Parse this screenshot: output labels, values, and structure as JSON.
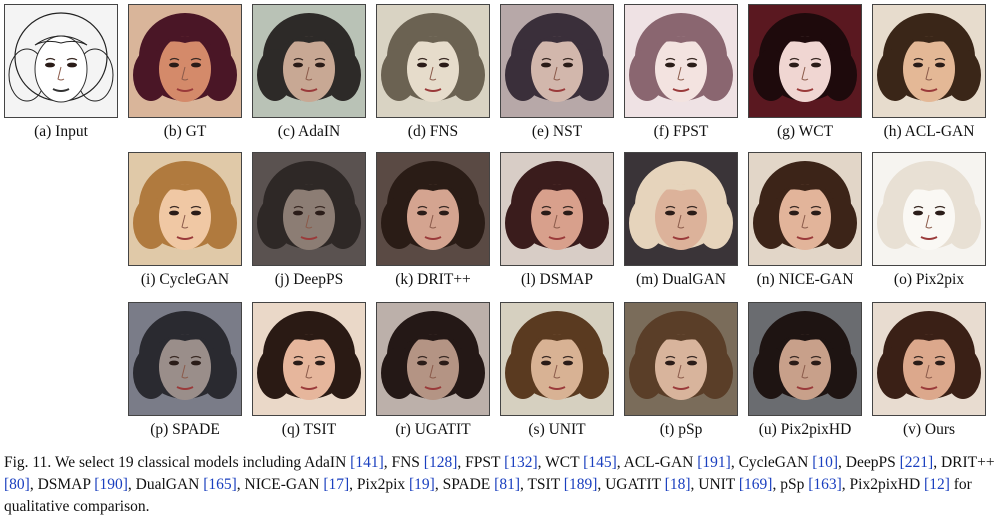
{
  "figure": {
    "cells": [
      {
        "label": "(a) Input",
        "bg": "#f4f4f4",
        "hair": "#2a2a2a",
        "skin": "#ffffff",
        "sketch": true
      },
      {
        "label": "(b) GT",
        "bg": "#d9b59a",
        "hair": "#4a1626",
        "skin": "#d48a6a"
      },
      {
        "label": "(c) AdaIN",
        "bg": "#b9c2b6",
        "hair": "#2d2a28",
        "skin": "#c8a894"
      },
      {
        "label": "(d) FNS",
        "bg": "#d9d3c3",
        "hair": "#6b6252",
        "skin": "#e6dccb"
      },
      {
        "label": "(e) NST",
        "bg": "#b7a8a8",
        "hair": "#3a2f3a",
        "skin": "#d2b7ac"
      },
      {
        "label": "(f) FPST",
        "bg": "#efe2e4",
        "hair": "#8a6670",
        "skin": "#f3e3e0"
      },
      {
        "label": "(g) WCT",
        "bg": "#5a1820",
        "hair": "#1e0a0c",
        "skin": "#f0d6d2"
      },
      {
        "label": "(h) ACL-GAN",
        "bg": "#e7dccd",
        "hair": "#3a2618",
        "skin": "#e4b896"
      },
      {
        "label": "(i) CycleGAN",
        "bg": "#e0c9a8",
        "hair": "#b07a3e",
        "skin": "#f0c8a4"
      },
      {
        "label": "(j) DeepPS",
        "bg": "#5a5250",
        "hair": "#2e2826",
        "skin": "#8c7d74"
      },
      {
        "label": "(k) DRIT++",
        "bg": "#5a4a44",
        "hair": "#2a1c16",
        "skin": "#d4a490"
      },
      {
        "label": "(l) DSMAP",
        "bg": "#d8cdc6",
        "hair": "#3a1c1c",
        "skin": "#d8a08c"
      },
      {
        "label": "(m) DualGAN",
        "bg": "#3a3438",
        "hair": "#e6d4bc",
        "skin": "#dcb29a"
      },
      {
        "label": "(n) NICE-GAN",
        "bg": "#e2d6c8",
        "hair": "#3c2418",
        "skin": "#e2b49a"
      },
      {
        "label": "(o) Pix2pix",
        "bg": "#f6f4f0",
        "hair": "#e8e0d4",
        "skin": "#faf8f4"
      },
      {
        "label": "(p) SPADE",
        "bg": "#7a7c88",
        "hair": "#2a2a30",
        "skin": "#9a8e8a"
      },
      {
        "label": "(q) TSIT",
        "bg": "#ead8c8",
        "hair": "#2a1a14",
        "skin": "#e6b69c"
      },
      {
        "label": "(r) UGATIT",
        "bg": "#bcb0aa",
        "hair": "#241816",
        "skin": "#b49484"
      },
      {
        "label": "(s) UNIT",
        "bg": "#d6d0c0",
        "hair": "#5a3a20",
        "skin": "#d8b294"
      },
      {
        "label": "(t) pSp",
        "bg": "#7a6c5a",
        "hair": "#5a3e28",
        "skin": "#d8b49c"
      },
      {
        "label": "(u) Pix2pixHD",
        "bg": "#6a6c70",
        "hair": "#1e1412",
        "skin": "#c8a08a"
      },
      {
        "label": "(v) Ours",
        "bg": "#e8dcd0",
        "hair": "#3a2016",
        "skin": "#dca88c"
      }
    ]
  },
  "caption": {
    "lead": "Fig. 11. We select 19 classical models including AdaIN ",
    "parts": [
      {
        "ref": "[141]",
        "text": ", FNS "
      },
      {
        "ref": "[128]",
        "text": ", FPST "
      },
      {
        "ref": "[132]",
        "text": ", WCT "
      },
      {
        "ref": "[145]",
        "text": ", ACL-GAN "
      },
      {
        "ref": "[191]",
        "text": ", CycleGAN "
      },
      {
        "ref": "[10]",
        "text": ", DeepPS "
      },
      {
        "ref": "[221]",
        "text": ", DRIT++ "
      },
      {
        "ref": "[80]",
        "text": ", DSMAP "
      },
      {
        "ref": "[190]",
        "text": ", DualGAN "
      },
      {
        "ref": "[165]",
        "text": ", NICE-GAN "
      },
      {
        "ref": "[17]",
        "text": ", Pix2pix "
      },
      {
        "ref": "[19]",
        "text": ", SPADE "
      },
      {
        "ref": "[81]",
        "text": ", TSIT "
      },
      {
        "ref": "[189]",
        "text": ", UGATIT "
      },
      {
        "ref": "[18]",
        "text": ", UNIT "
      },
      {
        "ref": "[169]",
        "text": ", pSp "
      },
      {
        "ref": "[163]",
        "text": ", Pix2pixHD "
      },
      {
        "ref": "[12]",
        "text": " for qualitative comparison."
      }
    ]
  }
}
